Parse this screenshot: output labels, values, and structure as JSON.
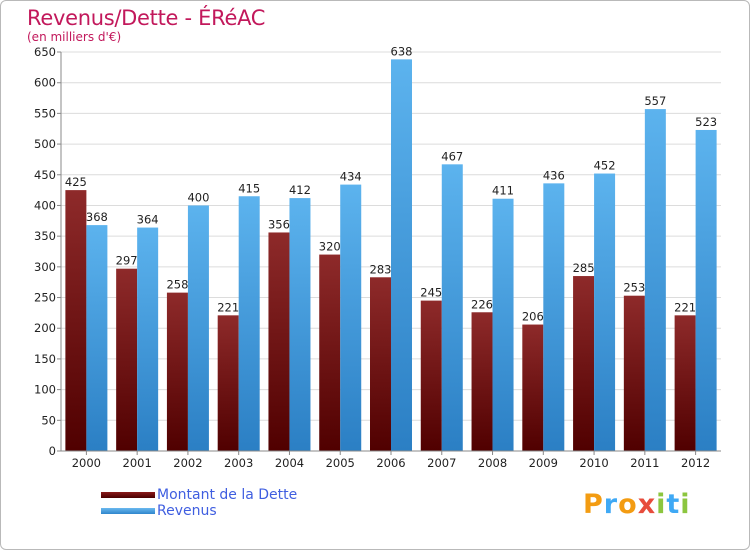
{
  "chart_data": {
    "type": "bar",
    "title": "Revenus/Dette - ÉRéAC",
    "subtitle": "(en milliers d'€)",
    "categories": [
      "2000",
      "2001",
      "2002",
      "2003",
      "2004",
      "2005",
      "2006",
      "2007",
      "2008",
      "2009",
      "2010",
      "2011",
      "2012"
    ],
    "series": [
      {
        "name": "Montant de la Dette",
        "values": [
          425,
          297,
          258,
          221,
          356,
          320,
          283,
          245,
          226,
          206,
          285,
          253,
          221
        ],
        "color": "#6b0a0a"
      },
      {
        "name": "Revenus",
        "values": [
          368,
          364,
          400,
          415,
          412,
          434,
          638,
          467,
          411,
          436,
          452,
          557,
          523
        ],
        "color": "#4da6e8"
      }
    ],
    "ylim": [
      0,
      650
    ],
    "yticks": [
      0,
      50,
      100,
      150,
      200,
      250,
      300,
      350,
      400,
      450,
      500,
      550,
      600,
      650
    ],
    "grid": true,
    "legend_position": "bottom-left"
  },
  "logo": {
    "letters": [
      {
        "ch": "P",
        "color": "#f39c12"
      },
      {
        "ch": "r",
        "color": "#3fa9f5"
      },
      {
        "ch": "o",
        "color": "#f39c12"
      },
      {
        "ch": "x",
        "color": "#e74c3c"
      },
      {
        "ch": "i",
        "color": "#8cc63f"
      },
      {
        "ch": "t",
        "color": "#3fa9f5"
      },
      {
        "ch": "i",
        "color": "#8cc63f"
      }
    ]
  }
}
